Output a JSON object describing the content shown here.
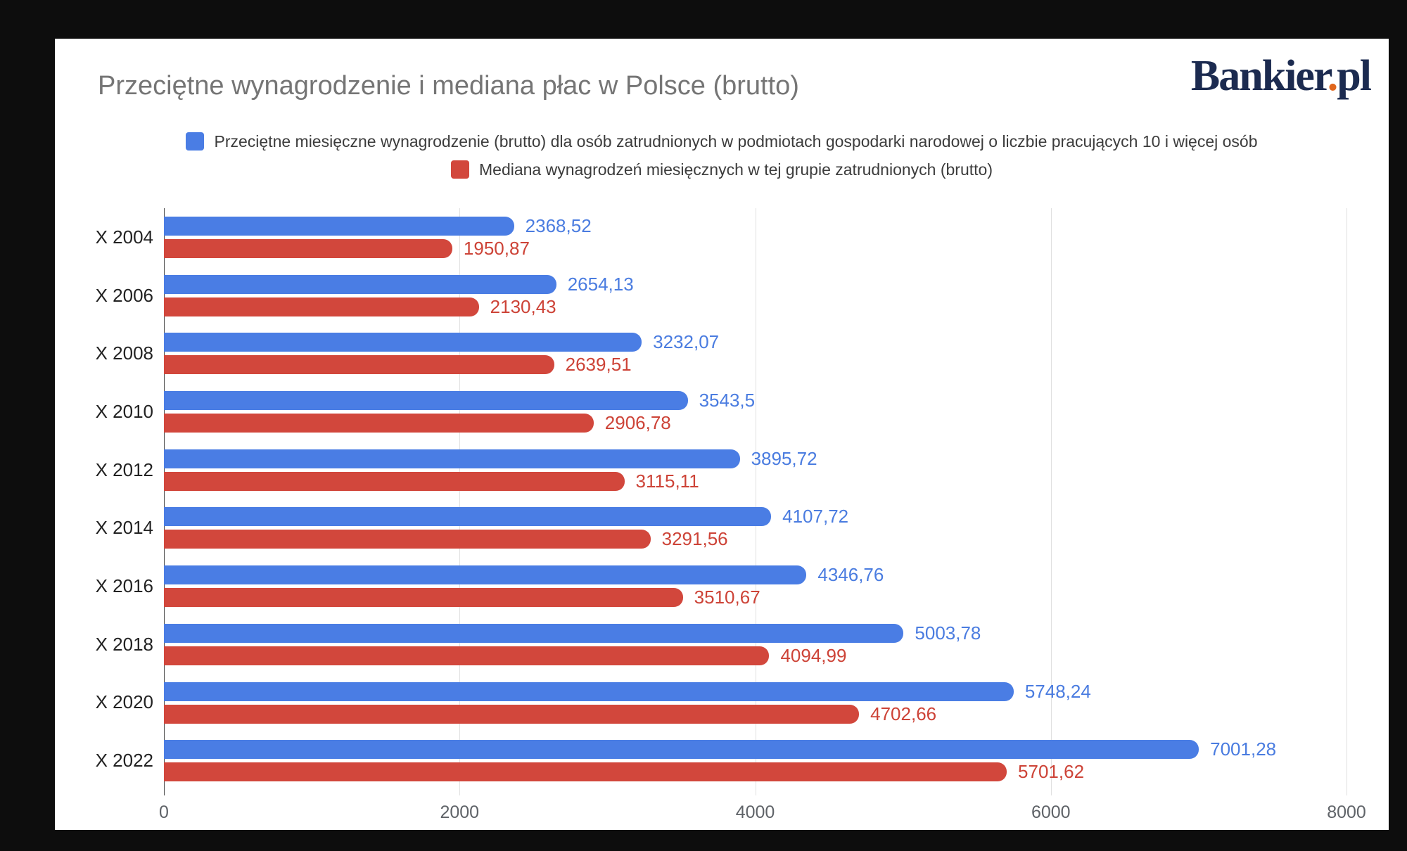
{
  "page": {
    "background_color": "#0d0d0d",
    "card_color": "#ffffff"
  },
  "logo": {
    "main": "Bankier",
    "dot": ".",
    "suffix": "pl",
    "color": "#1c2b50",
    "dot_color": "#e0661c"
  },
  "chart_data": {
    "type": "bar",
    "orientation": "horizontal",
    "title": "Przeciętne wynagrodzenie i mediana płac w Polsce (brutto)",
    "xlabel": "",
    "ylabel": "",
    "xlim": [
      0,
      8000
    ],
    "x_ticks": [
      0,
      2000,
      4000,
      6000,
      8000
    ],
    "x_tick_labels": [
      "0",
      "2000",
      "4000",
      "6000",
      "8000"
    ],
    "grid": true,
    "legend_position": "top",
    "categories": [
      "X 2004",
      "X 2006",
      "X 2008",
      "X 2010",
      "X 2012",
      "X 2014",
      "X 2016",
      "X 2018",
      "X 2020",
      "X 2022"
    ],
    "series": [
      {
        "name": "Przeciętne miesięczne wynagrodzenie (brutto) dla osób zatrudnionych w podmiotach gospodarki narodowej o liczbie pracujących 10 i więcej osób",
        "color": "#4a7de4",
        "label_color": "#4a7ce0",
        "values": [
          2368.52,
          2654.13,
          3232.07,
          3543.5,
          3895.72,
          4107.72,
          4346.76,
          5003.78,
          5748.24,
          7001.28
        ],
        "value_labels": [
          "2368,52",
          "2654,13",
          "3232,07",
          "3543,5",
          "3895,72",
          "4107,72",
          "4346,76",
          "5003,78",
          "5748,24",
          "7001,28"
        ]
      },
      {
        "name": "Mediana wynagrodzeń miesięcznych w tej grupie zatrudnionych (brutto)",
        "color": "#d2473c",
        "label_color": "#cd4337",
        "values": [
          1950.87,
          2130.43,
          2639.51,
          2906.78,
          3115.11,
          3291.56,
          3510.67,
          4094.99,
          4702.66,
          5701.62
        ],
        "value_labels": [
          "1950,87",
          "2130,43",
          "2639,51",
          "2906,78",
          "3115,11",
          "3291,56",
          "3510,67",
          "4094,99",
          "4702,66",
          "5701,62"
        ]
      }
    ]
  }
}
